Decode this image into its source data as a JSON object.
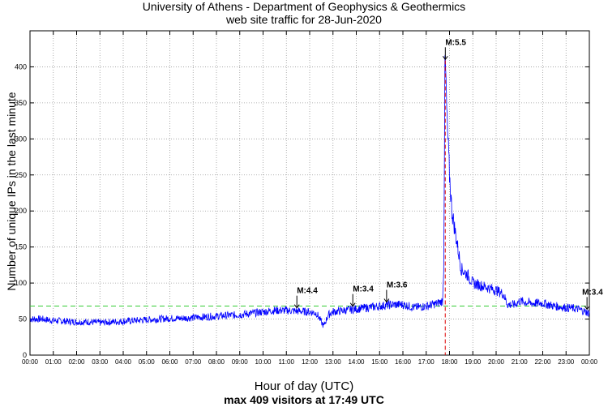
{
  "chart_data": {
    "type": "line",
    "title": "University of Athens - Department of Geophysics & Geothermics",
    "subtitle": "web site traffic for 28-Jun-2020",
    "xlabel": "Hour of day (UTC)",
    "xlabel_note": "max 409 visitors at 17:49 UTC",
    "ylabel": "Number of unique IPs in the last minute",
    "xlim": [
      0,
      24
    ],
    "ylim": [
      0,
      450
    ],
    "yticks": [
      0,
      50,
      100,
      150,
      200,
      250,
      300,
      350,
      400
    ],
    "xtick_labels": [
      "00:00",
      "01:00",
      "02:00",
      "03:00",
      "04:00",
      "05:00",
      "06:00",
      "07:00",
      "08:00",
      "09:00",
      "10:00",
      "11:00",
      "12:00",
      "13:00",
      "14:00",
      "15:00",
      "16:00",
      "17:00",
      "18:00",
      "19:00",
      "20:00",
      "21:00",
      "22:00",
      "23:00",
      "00:00"
    ],
    "grid": true,
    "line_color": "#0000ff",
    "mean_line": {
      "value": 68,
      "color": "#33cc33",
      "style": "dashed"
    },
    "max_marker": {
      "time": 17.817,
      "value": 409,
      "color": "#dd0000",
      "style": "dashed"
    },
    "series": [
      {
        "x": [
          0,
          0.5,
          1,
          1.5,
          2,
          2.5,
          3,
          3.5,
          4,
          4.5,
          5,
          5.5,
          6,
          6.5,
          7,
          7.5,
          8,
          8.5,
          9,
          9.5,
          10,
          10.5,
          11,
          11.5,
          12,
          12.3,
          12.6,
          12.8,
          13,
          13.5,
          14,
          14.5,
          15,
          15.5,
          16,
          16.5,
          17,
          17.5,
          17.7,
          17.75,
          17.8,
          17.817,
          17.9,
          18.0,
          18.1,
          18.3,
          18.5,
          18.8,
          19,
          19.5,
          20,
          20.3,
          20.5,
          20.8,
          21,
          21.5,
          22,
          22.5,
          23,
          23.5,
          24
        ],
        "y": [
          50,
          50,
          48,
          47,
          46,
          46,
          45,
          46,
          47,
          48,
          49,
          50,
          51,
          51,
          52,
          53,
          54,
          55,
          56,
          58,
          60,
          62,
          62,
          61,
          60,
          58,
          40,
          56,
          60,
          62,
          64,
          66,
          68,
          70,
          70,
          66,
          68,
          72,
          75,
          120,
          390,
          409,
          320,
          250,
          200,
          160,
          120,
          110,
          100,
          95,
          90,
          85,
          70,
          70,
          75,
          72,
          72,
          68,
          66,
          64,
          58
        ]
      }
    ],
    "annotations": [
      {
        "label": "M:4.4",
        "time": 11.45
      },
      {
        "label": "M:3.4",
        "time": 13.85
      },
      {
        "label": "M:3.6",
        "time": 15.3
      },
      {
        "label": "M:5.5",
        "time": 17.82
      },
      {
        "label": "M:3.4",
        "time": 23.9
      }
    ]
  }
}
